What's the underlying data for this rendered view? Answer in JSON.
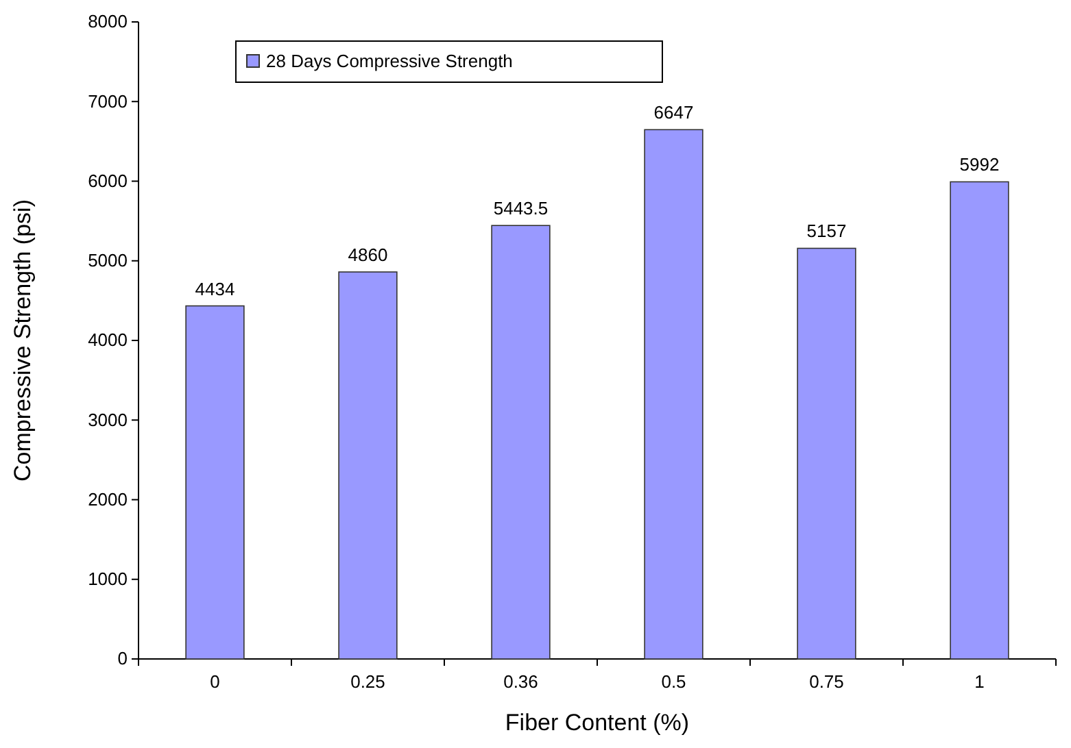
{
  "chart_data": {
    "type": "bar",
    "xlabel": "Fiber Content (%)",
    "ylabel": "Compressive Strength (psi)",
    "categories": [
      "0",
      "0.25",
      "0.36",
      "0.5",
      "0.75",
      "1"
    ],
    "series": [
      {
        "name": "28 Days Compressive Strength",
        "color": "#9999ff",
        "values": [
          4434,
          4860,
          5443.5,
          6647,
          5157,
          5992
        ]
      }
    ],
    "ylim": [
      0,
      8000
    ],
    "yticks": [
      0,
      1000,
      2000,
      3000,
      4000,
      5000,
      6000,
      7000,
      8000
    ],
    "data_labels": true,
    "legend": "top left",
    "grid": false
  }
}
